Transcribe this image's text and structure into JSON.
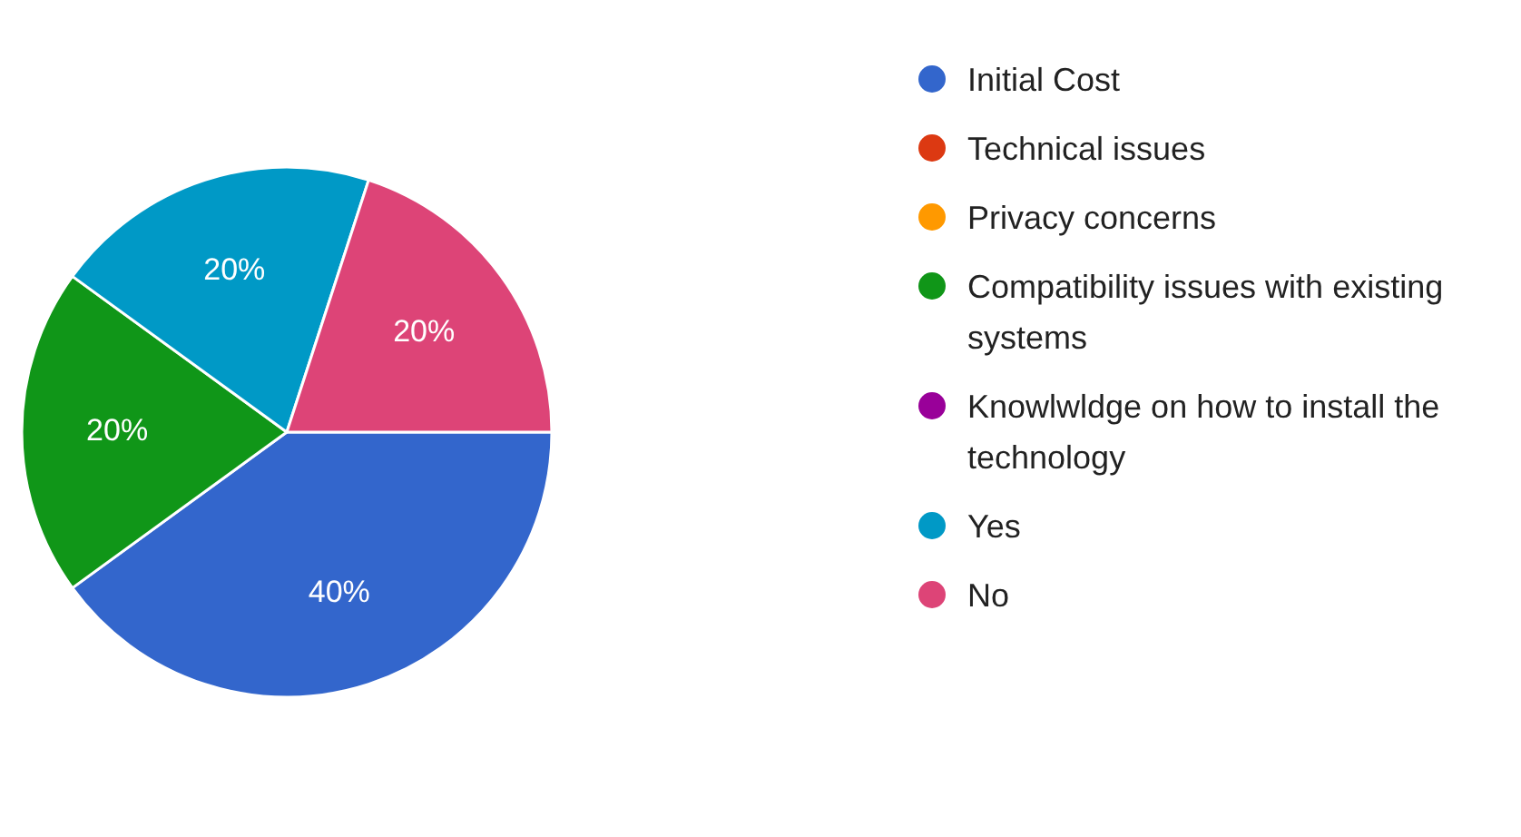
{
  "chart_data": {
    "type": "pie",
    "categories": [
      "Initial Cost",
      "Technical issues",
      "Privacy concerns",
      "Compatibility issues with existing systems",
      "Knowlwldge on how to install the technology",
      "Yes",
      "No"
    ],
    "values": [
      40,
      0,
      0,
      20,
      0,
      20,
      20
    ],
    "colors": [
      "#3366cc",
      "#dc3912",
      "#ff9900",
      "#109618",
      "#990099",
      "#0099c6",
      "#dd4477"
    ],
    "value_labels": [
      "40%",
      null,
      null,
      "20%",
      null,
      "20%",
      "20%"
    ],
    "legend": "right"
  }
}
